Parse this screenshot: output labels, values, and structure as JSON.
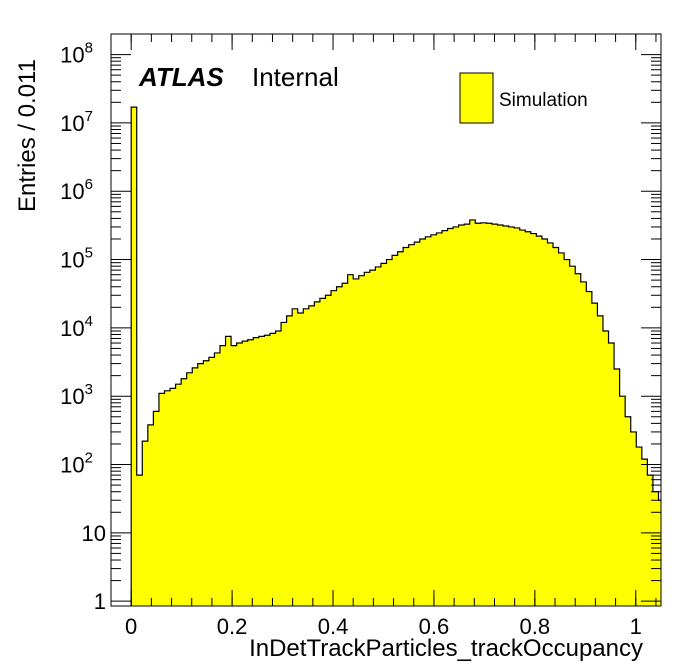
{
  "chart_data": {
    "type": "bar",
    "title": "",
    "xlabel": "InDetTrackParticles_trackOccupancy",
    "ylabel": "Entries / 0.011",
    "xlim": [
      -0.04,
      1.05
    ],
    "ylim": [
      0.85,
      200000000
    ],
    "yscale": "log",
    "bin_width": 0.011,
    "grid": false,
    "fill_color": "#ffff00",
    "line_color": "#000000",
    "label_atlas": "ATLAS",
    "label_status": "Internal",
    "legend": {
      "entries": [
        "Simulation"
      ],
      "position": "top-right"
    },
    "x_ticks": [
      {
        "value": 0,
        "label": "0"
      },
      {
        "value": 0.2,
        "label": "0.2"
      },
      {
        "value": 0.4,
        "label": "0.4"
      },
      {
        "value": 0.6,
        "label": "0.6"
      },
      {
        "value": 0.8,
        "label": "0.8"
      },
      {
        "value": 1,
        "label": "1"
      }
    ],
    "y_ticks": [
      {
        "value": 1,
        "base": "1",
        "exp": ""
      },
      {
        "value": 10,
        "base": "10",
        "exp": ""
      },
      {
        "value": 100,
        "base": "10",
        "exp": "2"
      },
      {
        "value": 1000,
        "base": "10",
        "exp": "3"
      },
      {
        "value": 10000,
        "base": "10",
        "exp": "4"
      },
      {
        "value": 100000,
        "base": "10",
        "exp": "5"
      },
      {
        "value": 1000000,
        "base": "10",
        "exp": "6"
      },
      {
        "value": 10000000,
        "base": "10",
        "exp": "7"
      },
      {
        "value": 100000000,
        "base": "10",
        "exp": "8"
      }
    ],
    "bins_x_start": 0.0,
    "values": [
      17000000,
      70,
      220,
      380,
      600,
      1100,
      1200,
      1300,
      1500,
      1800,
      2200,
      2600,
      3000,
      3300,
      3700,
      4300,
      5500,
      7500,
      5500,
      6000,
      6400,
      6700,
      7200,
      7500,
      7800,
      8300,
      9000,
      12000,
      15000,
      19000,
      16500,
      19000,
      21000,
      24000,
      27000,
      30000,
      35000,
      40000,
      45000,
      60000,
      52000,
      58000,
      65000,
      70000,
      78000,
      88000,
      100000,
      115000,
      130000,
      150000,
      165000,
      180000,
      200000,
      215000,
      230000,
      245000,
      265000,
      285000,
      300000,
      320000,
      330000,
      380000,
      340000,
      345000,
      340000,
      330000,
      320000,
      310000,
      300000,
      290000,
      270000,
      255000,
      240000,
      220000,
      200000,
      175000,
      150000,
      125000,
      100000,
      80000,
      62000,
      47000,
      34000,
      23000,
      15000,
      9000,
      6000,
      2500,
      1000,
      500,
      300,
      180,
      120,
      70,
      40,
      30
    ]
  }
}
